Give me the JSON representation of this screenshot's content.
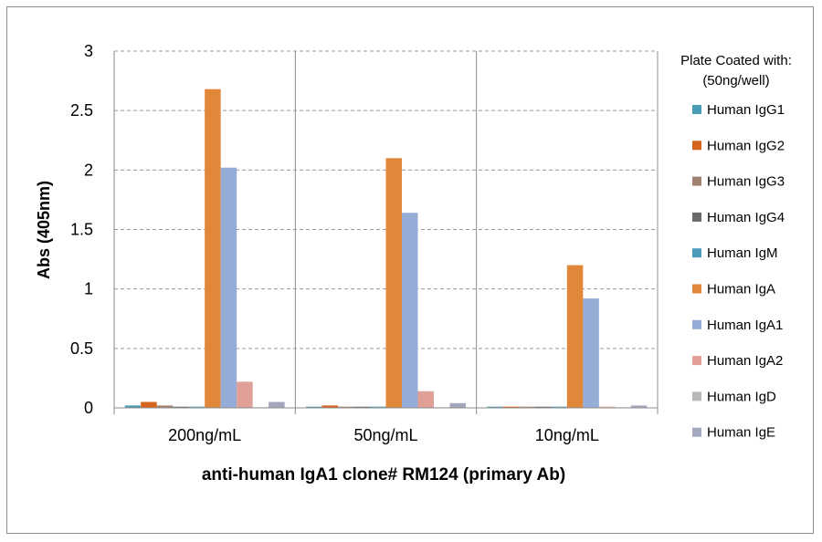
{
  "chart_data": {
    "type": "bar",
    "xlabel": "anti-human IgA1 clone# RM124 (primary Ab)",
    "ylabel": "Abs (405nm)",
    "ylim": [
      0,
      3
    ],
    "yticks": [
      "0",
      "0.5",
      "1",
      "1.5",
      "2",
      "2.5",
      "3"
    ],
    "grid": "horizontal dashed",
    "categories": [
      "200ng/mL",
      "50ng/mL",
      "10ng/mL"
    ],
    "legend": {
      "title_line1": "Plate Coated with:",
      "title_line2": "(50ng/well)",
      "placement": "right"
    },
    "series": [
      {
        "name": "Human IgG1",
        "color": "#4a9bb5",
        "values": [
          0.02,
          0.01,
          0.01
        ]
      },
      {
        "name": "Human IgG2",
        "color": "#d4641c",
        "values": [
          0.05,
          0.02,
          0.01
        ]
      },
      {
        "name": "Human IgG3",
        "color": "#a08070",
        "values": [
          0.02,
          0.01,
          0.01
        ]
      },
      {
        "name": "Human IgG4",
        "color": "#6a6a6a",
        "values": [
          0.01,
          0.01,
          0.01
        ]
      },
      {
        "name": "Human IgM",
        "color": "#4b9bb8",
        "values": [
          0.01,
          0.01,
          0.01
        ]
      },
      {
        "name": "Human IgA",
        "color": "#e0873a",
        "values": [
          2.68,
          2.1,
          1.2
        ]
      },
      {
        "name": "Human IgA1",
        "color": "#94acd6",
        "values": [
          2.02,
          1.64,
          0.92
        ]
      },
      {
        "name": "Human IgA2",
        "color": "#e0a098",
        "values": [
          0.22,
          0.14,
          0.01
        ]
      },
      {
        "name": "Human IgD",
        "color": "#b8b8b8",
        "values": [
          0.005,
          0.005,
          0.005
        ]
      },
      {
        "name": "Human IgE",
        "color": "#a4a8be",
        "values": [
          0.05,
          0.04,
          0.02
        ]
      }
    ]
  }
}
